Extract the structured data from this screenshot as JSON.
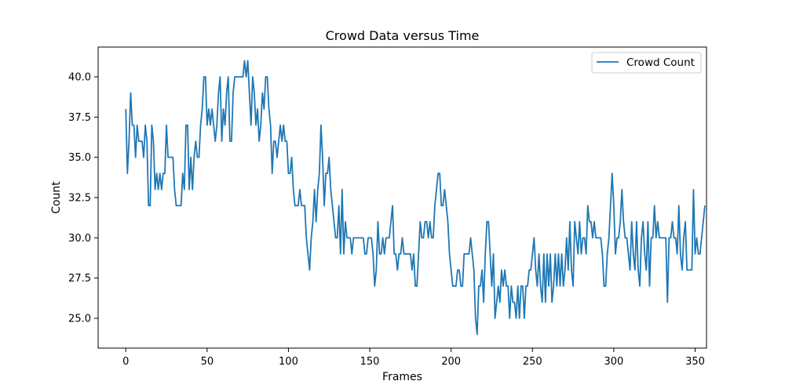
{
  "chart_data": {
    "type": "line",
    "title": "Crowd Data versus Time",
    "xlabel": "Frames",
    "ylabel": "Count",
    "xlim": [
      -17,
      357
    ],
    "ylim": [
      23.15,
      41.85
    ],
    "xticks": [
      0,
      50,
      100,
      150,
      200,
      250,
      300,
      350
    ],
    "xtick_labels": [
      "0",
      "50",
      "100",
      "150",
      "200",
      "250",
      "300",
      "350"
    ],
    "yticks": [
      25.0,
      27.5,
      30.0,
      32.5,
      35.0,
      37.5,
      40.0
    ],
    "ytick_labels": [
      "25.0",
      "27.5",
      "30.0",
      "32.5",
      "35.0",
      "37.5",
      "40.0"
    ],
    "grid": false,
    "legend_position": "top-right",
    "colors": {
      "series": "#1f77b4",
      "axes": "#000000",
      "background": "#ffffff"
    },
    "x_start": 0,
    "series": [
      {
        "name": "Crowd Count",
        "values": [
          38,
          34,
          36,
          39,
          37,
          37,
          35,
          37,
          36,
          36,
          36,
          35,
          37,
          36,
          32,
          32,
          37,
          36,
          33,
          34,
          33,
          34,
          33,
          34,
          34,
          37,
          35,
          35,
          35,
          35,
          33,
          32,
          32,
          32,
          32,
          34,
          33,
          37,
          37,
          33,
          35,
          33,
          35,
          36,
          35,
          35,
          37,
          38,
          40,
          40,
          37,
          38,
          37,
          38,
          37,
          36,
          37,
          39,
          40,
          36,
          38,
          37,
          39,
          40,
          36,
          36,
          39,
          40,
          40,
          40,
          40,
          40,
          40,
          41,
          40,
          41,
          39,
          37,
          40,
          39,
          37,
          38,
          36,
          37,
          39,
          38,
          40,
          40,
          38,
          37,
          34,
          36,
          36,
          35,
          36,
          37,
          36,
          37,
          36,
          36,
          34,
          34,
          35,
          33,
          32,
          32,
          32,
          33,
          32,
          32,
          32,
          30,
          29,
          28,
          30,
          31,
          33,
          31,
          33,
          34,
          37,
          35,
          32,
          34,
          34,
          35,
          33,
          32,
          31,
          30,
          30,
          32,
          29,
          33,
          29,
          31,
          30,
          30,
          30,
          29,
          30,
          30,
          30,
          30,
          30,
          30,
          30,
          29,
          29,
          30,
          30,
          30,
          29,
          27,
          28,
          31,
          29,
          29,
          30,
          29,
          30,
          30,
          30,
          31,
          32,
          29,
          29,
          28,
          29,
          29,
          30,
          29,
          29,
          29,
          29,
          29,
          28,
          29,
          27,
          27,
          29,
          31,
          30,
          30,
          31,
          31,
          30,
          31,
          30,
          30,
          32,
          33,
          34,
          34,
          32,
          32,
          33,
          32,
          31,
          29,
          28,
          27,
          27,
          27,
          28,
          28,
          27,
          27,
          29,
          29,
          29,
          29,
          30,
          29,
          28,
          25,
          24,
          27,
          27,
          28,
          26,
          29,
          31,
          31,
          29,
          27,
          29,
          25,
          26,
          27,
          26,
          28,
          27,
          28,
          27,
          27,
          25,
          27,
          26,
          26,
          25,
          27,
          25,
          27,
          27,
          25,
          27,
          27,
          28,
          28,
          29,
          30,
          28,
          27,
          29,
          27,
          26,
          29,
          26,
          29,
          27,
          29,
          26,
          27,
          29,
          27,
          29,
          27,
          29,
          27,
          28,
          30,
          28,
          31,
          28,
          27,
          31,
          30,
          29,
          31,
          29,
          30,
          30,
          29,
          32,
          31,
          31,
          30,
          31,
          30,
          30,
          30,
          30,
          29,
          27,
          27,
          29,
          30,
          32,
          34,
          32,
          29,
          30,
          30,
          31,
          33,
          31,
          30,
          30,
          29,
          28,
          31,
          29,
          28,
          31,
          28,
          27,
          30,
          31,
          29,
          28,
          31,
          27,
          30,
          30,
          32,
          30,
          31,
          30,
          30,
          30,
          30,
          30,
          26,
          30,
          30,
          31,
          30,
          30,
          29,
          32,
          29,
          28,
          30,
          31,
          28,
          28,
          28,
          28,
          33,
          29,
          30,
          29,
          29,
          30,
          31,
          32
        ]
      }
    ]
  }
}
